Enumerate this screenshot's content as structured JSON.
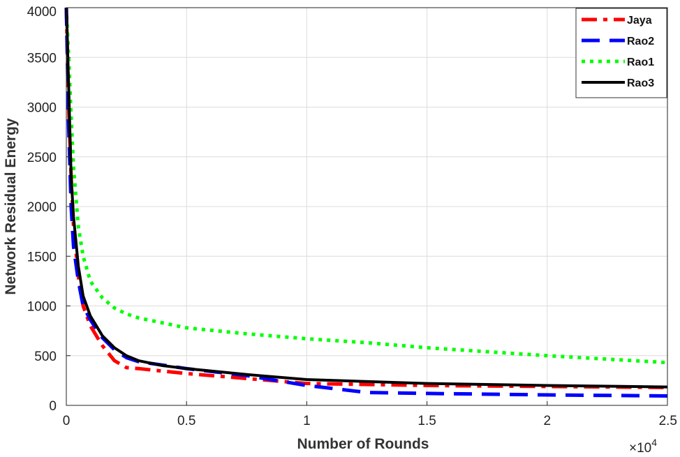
{
  "chart_data": {
    "type": "line",
    "title": "",
    "xlabel": "Number of Rounds",
    "ylabel": "Network Residual Energy",
    "x_multiplier_label": "×10",
    "x_multiplier_exp": "4",
    "xlim": [
      0,
      2.5
    ],
    "ylim": [
      0,
      4000
    ],
    "xticks": [
      "0",
      "0.5",
      "1",
      "1.5",
      "2",
      "2.5"
    ],
    "xtick_values": [
      0,
      0.5,
      1,
      1.5,
      2,
      2.5
    ],
    "yticks": [
      "0",
      "500",
      "1000",
      "1500",
      "2000",
      "2500",
      "3000",
      "3500",
      "4000"
    ],
    "ytick_values": [
      0,
      500,
      1000,
      1500,
      2000,
      2500,
      3000,
      3500,
      4000
    ],
    "grid": true,
    "legend_position": "top-right",
    "series": [
      {
        "name": "Jaya",
        "color": "#ff0000",
        "style": "dashdot",
        "x": [
          0,
          0.01,
          0.02,
          0.03,
          0.05,
          0.07,
          0.1,
          0.15,
          0.2,
          0.25,
          0.3,
          0.5,
          0.75,
          1.0,
          1.5,
          2.0,
          2.5
        ],
        "y": [
          4000,
          3000,
          2300,
          1800,
          1300,
          1000,
          800,
          600,
          450,
          380,
          370,
          320,
          270,
          220,
          200,
          190,
          180
        ]
      },
      {
        "name": "Rao2",
        "color": "#0000ff",
        "style": "dashed",
        "x": [
          0,
          0.01,
          0.02,
          0.03,
          0.05,
          0.07,
          0.1,
          0.15,
          0.2,
          0.25,
          0.3,
          0.5,
          0.75,
          1.0,
          1.25,
          1.5,
          2.0,
          2.5
        ],
        "y": [
          4000,
          2800,
          2000,
          1600,
          1250,
          1000,
          860,
          680,
          560,
          480,
          440,
          370,
          300,
          200,
          130,
          120,
          105,
          95
        ]
      },
      {
        "name": "Rao1",
        "color": "#00ff00",
        "style": "dotted",
        "x": [
          0,
          0.01,
          0.02,
          0.03,
          0.05,
          0.07,
          0.1,
          0.15,
          0.2,
          0.25,
          0.3,
          0.5,
          0.75,
          1.0,
          1.25,
          1.5,
          2.0,
          2.5
        ],
        "y": [
          4000,
          3500,
          2900,
          2400,
          1800,
          1500,
          1250,
          1080,
          980,
          920,
          880,
          780,
          720,
          670,
          630,
          580,
          500,
          430
        ]
      },
      {
        "name": "Rao3",
        "color": "#000000",
        "style": "solid",
        "x": [
          0,
          0.01,
          0.02,
          0.03,
          0.05,
          0.07,
          0.1,
          0.15,
          0.2,
          0.25,
          0.3,
          0.4,
          0.5,
          0.75,
          1.0,
          1.5,
          2.0,
          2.5
        ],
        "y": [
          4000,
          3200,
          2300,
          1900,
          1400,
          1100,
          900,
          700,
          580,
          500,
          450,
          400,
          370,
          310,
          260,
          220,
          200,
          185
        ]
      }
    ]
  }
}
